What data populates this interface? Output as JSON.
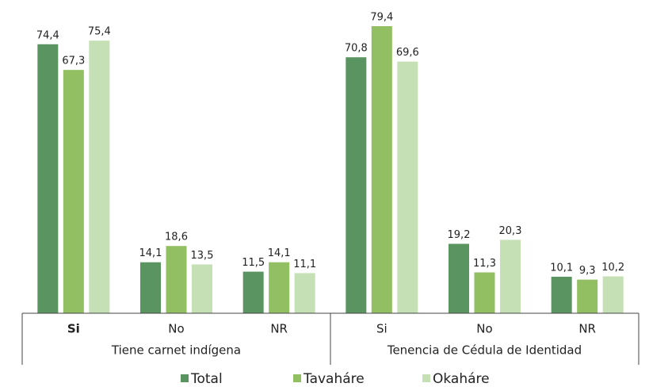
{
  "chart_data": {
    "type": "bar",
    "groups": [
      {
        "name": "Tiene carnet indígena",
        "categories": [
          "Si",
          "No",
          "NR"
        ]
      },
      {
        "name": "Tenencia de Cédula de Identidad",
        "categories": [
          "Si",
          "No",
          "NR"
        ]
      }
    ],
    "series": [
      {
        "name": "Total",
        "color": "#5a9460",
        "values": [
          74.4,
          14.1,
          11.5,
          70.8,
          19.2,
          10.1
        ],
        "value_labels": [
          "74,4",
          "14,1",
          "11,5",
          "70,8",
          "19,2",
          "10,1"
        ]
      },
      {
        "name": "Tavaháre",
        "color": "#93bf63",
        "values": [
          67.3,
          18.6,
          14.1,
          79.4,
          11.3,
          9.3
        ],
        "value_labels": [
          "67,3",
          "18,6",
          "14,1",
          "79,4",
          "11,3",
          "9,3"
        ]
      },
      {
        "name": "Okaháre",
        "color": "#c5e0b4",
        "values": [
          75.4,
          13.5,
          11.1,
          69.6,
          20.3,
          10.2
        ],
        "value_labels": [
          "75,4",
          "13,5",
          "11,1",
          "69,6",
          "20,3",
          "10,2"
        ]
      }
    ]
  }
}
